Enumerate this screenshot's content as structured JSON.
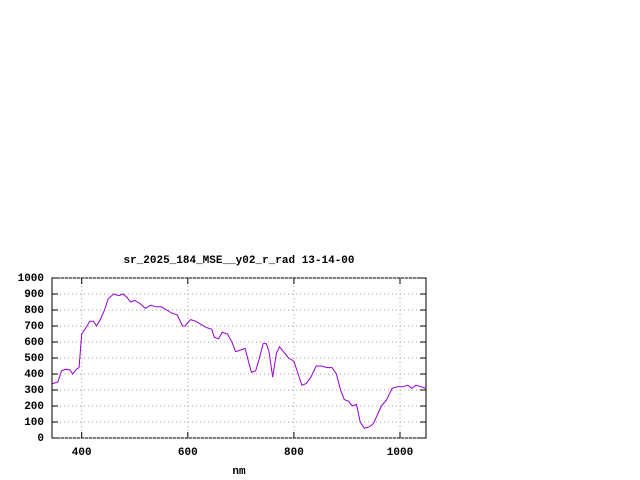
{
  "chart_data": {
    "type": "line",
    "title": "sr_2025_184_MSE__y02_r_rad 13-14-00",
    "x_label": "nm",
    "x": [
      345,
      355,
      362,
      370,
      378,
      383,
      390,
      395,
      400,
      410,
      415,
      422,
      428,
      435,
      443,
      450,
      460,
      470,
      478,
      485,
      492,
      500,
      510,
      520,
      530,
      540,
      550,
      560,
      570,
      580,
      590,
      595,
      605,
      615,
      625,
      635,
      645,
      650,
      658,
      665,
      675,
      683,
      690,
      700,
      708,
      715,
      720,
      728,
      735,
      742,
      748,
      753,
      760,
      767,
      773,
      780,
      790,
      800,
      808,
      815,
      823,
      832,
      842,
      852,
      862,
      872,
      880,
      888,
      895,
      903,
      910,
      918,
      925,
      933,
      942,
      950,
      958,
      965,
      975,
      985,
      995,
      1005,
      1015,
      1022,
      1030,
      1040,
      1049
    ],
    "values": [
      340,
      350,
      420,
      430,
      425,
      400,
      430,
      440,
      650,
      700,
      730,
      730,
      700,
      740,
      800,
      870,
      900,
      890,
      900,
      880,
      850,
      860,
      840,
      810,
      830,
      820,
      820,
      800,
      780,
      770,
      700,
      700,
      740,
      730,
      710,
      690,
      680,
      630,
      620,
      660,
      650,
      600,
      540,
      550,
      560,
      470,
      410,
      420,
      500,
      590,
      590,
      540,
      380,
      530,
      570,
      540,
      500,
      480,
      400,
      330,
      340,
      380,
      450,
      450,
      440,
      440,
      400,
      300,
      240,
      230,
      200,
      210,
      100,
      60,
      70,
      90,
      150,
      200,
      240,
      310,
      320,
      320,
      330,
      310,
      330,
      320,
      310
    ],
    "color": "#9400d3",
    "xlim": [
      344,
      1049
    ],
    "ylim": [
      0,
      1000
    ],
    "xticks": [
      400,
      600,
      800,
      1000
    ],
    "yticks": [
      0,
      100,
      200,
      300,
      400,
      500,
      600,
      700,
      800,
      900,
      1000
    ],
    "grid": true
  }
}
